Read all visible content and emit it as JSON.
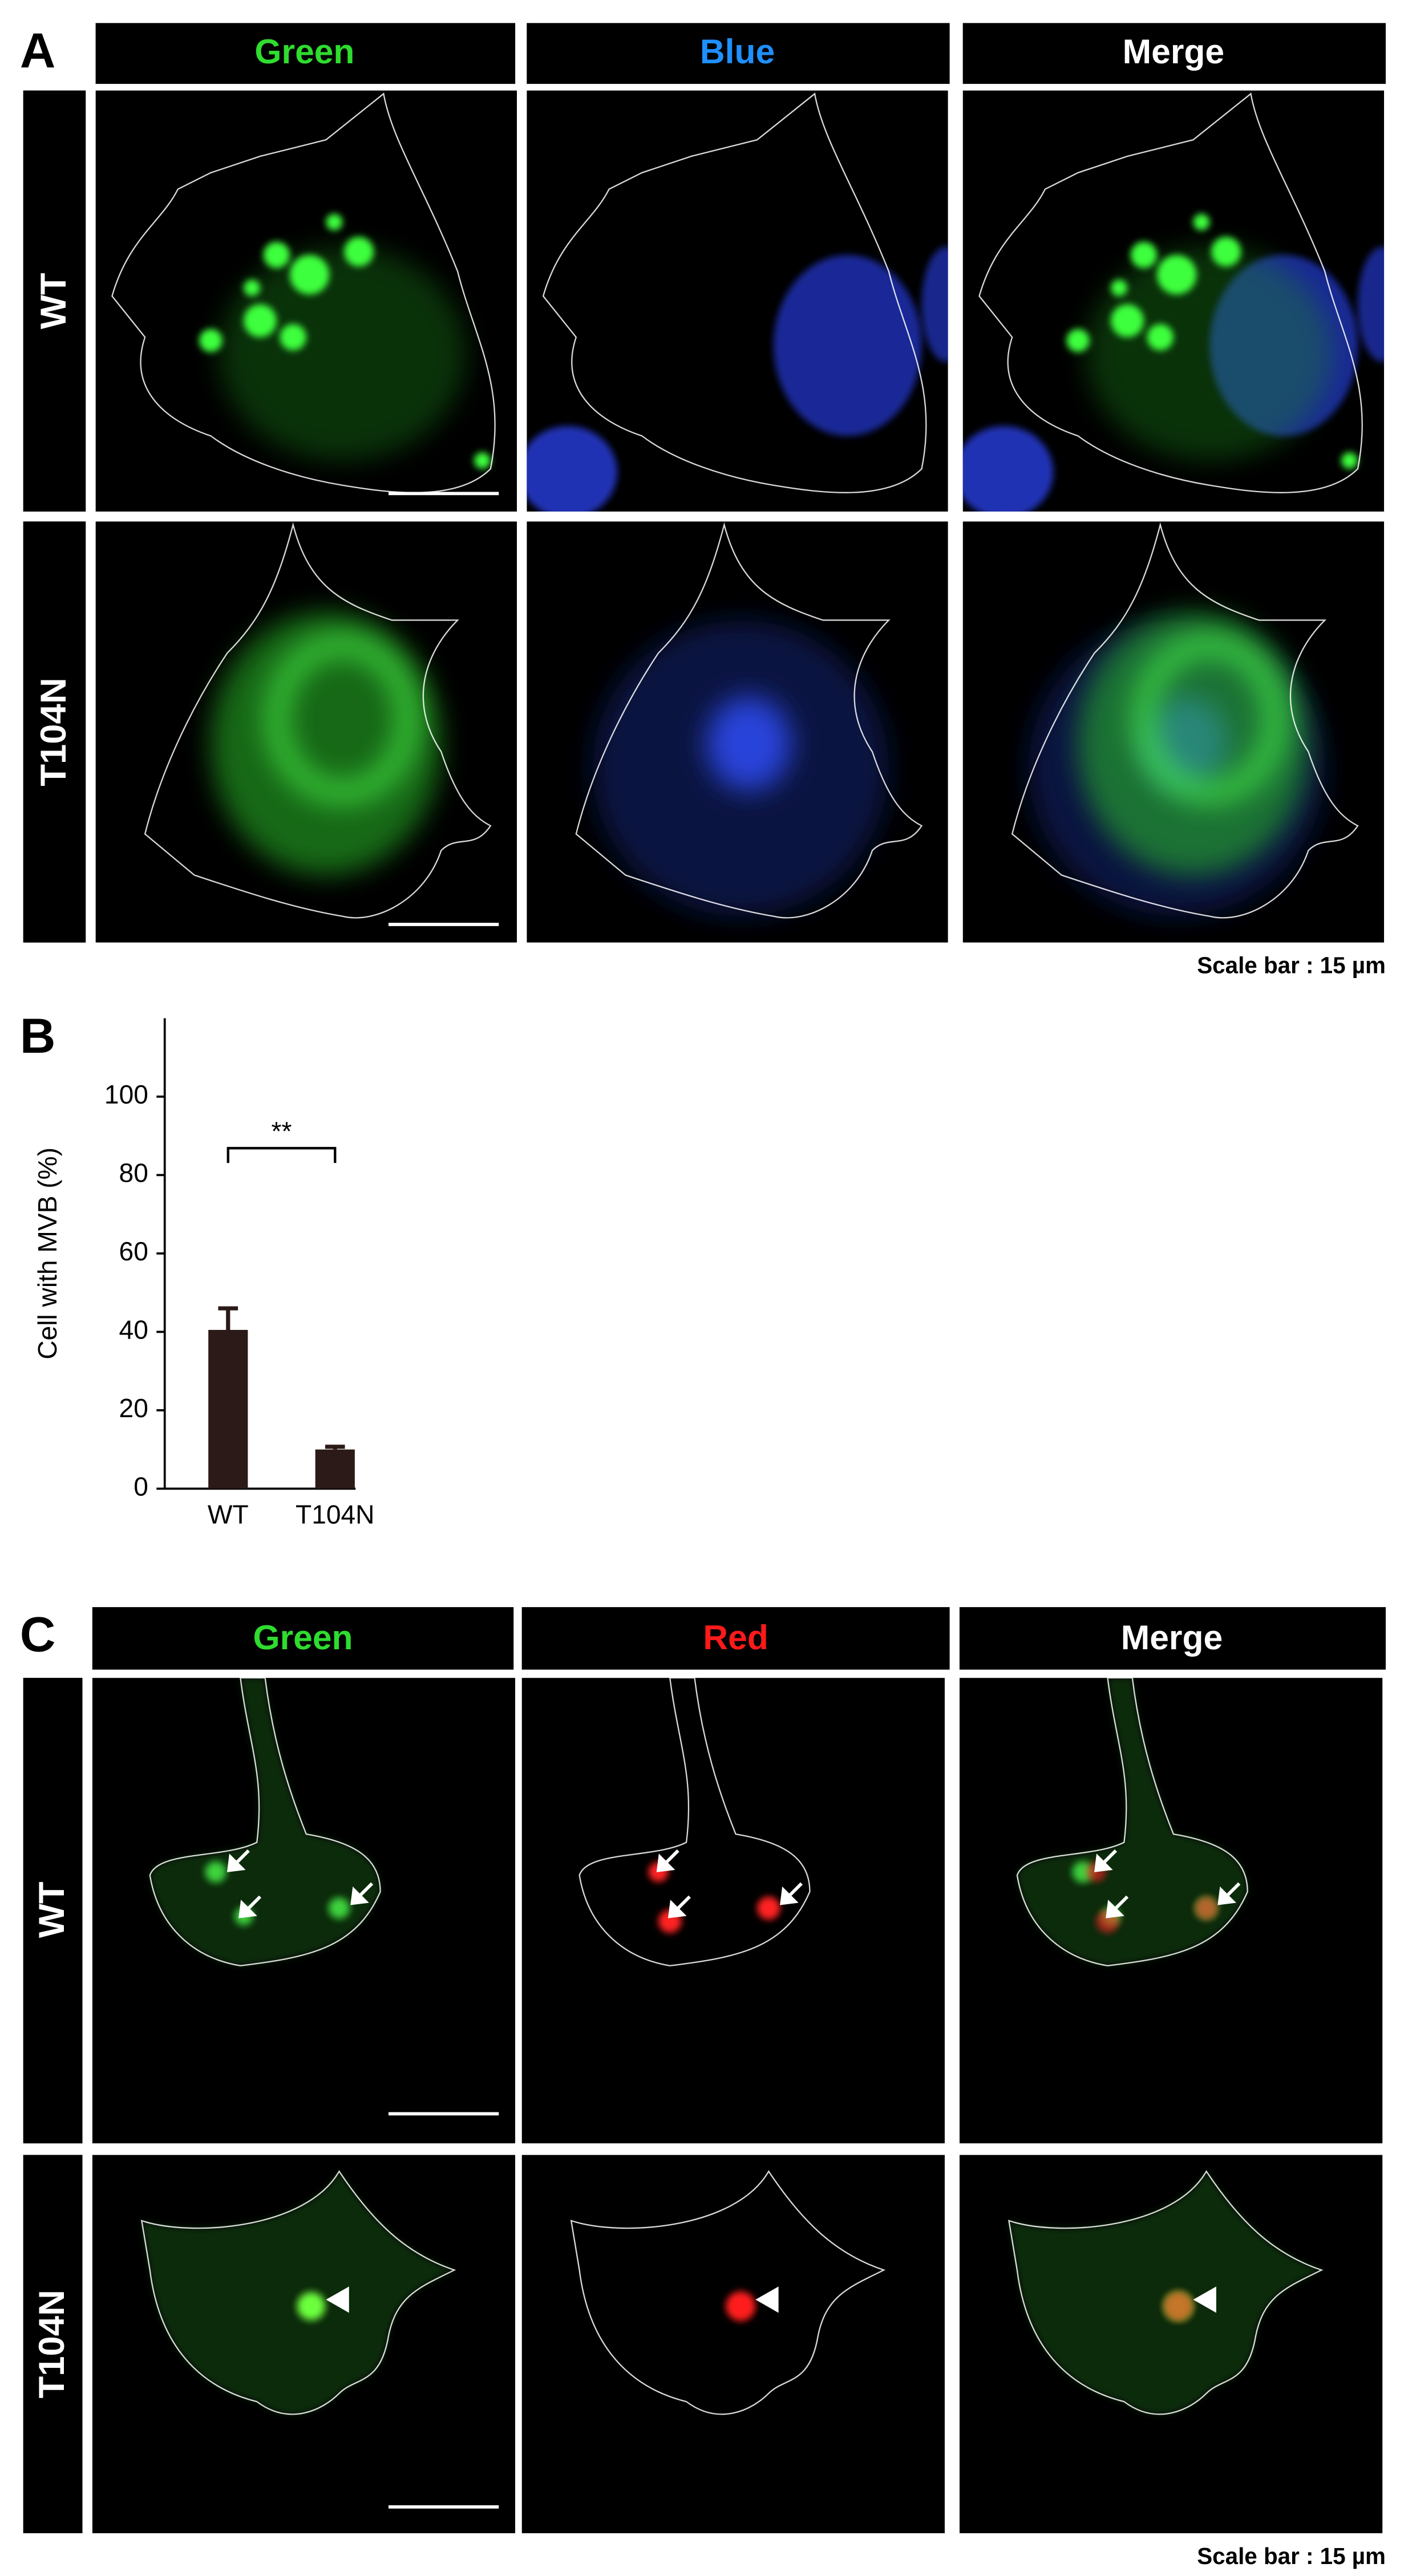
{
  "panel_a": {
    "label": "A",
    "columns": [
      "Green",
      "Blue",
      "Merge"
    ],
    "rows": [
      "WT",
      "T104N"
    ],
    "scale_note": "Scale bar : 15 µm"
  },
  "panel_b": {
    "label": "B"
  },
  "chart_data": {
    "type": "bar",
    "y_label": "Cell with MVB (%)",
    "categories": [
      "WT",
      "T104N"
    ],
    "values": [
      40.5,
      10
    ],
    "errors": [
      5.5,
      0.7
    ],
    "color": "#2b1a17",
    "ylim": [
      0,
      120
    ],
    "yticks": [
      0,
      20,
      40,
      60,
      80,
      100
    ],
    "annotation": "**"
  },
  "panel_c": {
    "label": "C",
    "columns": [
      "Green",
      "Red",
      "Merge"
    ],
    "rows": [
      "WT",
      "T104N"
    ],
    "scale_note": "Scale bar : 15 µm"
  }
}
